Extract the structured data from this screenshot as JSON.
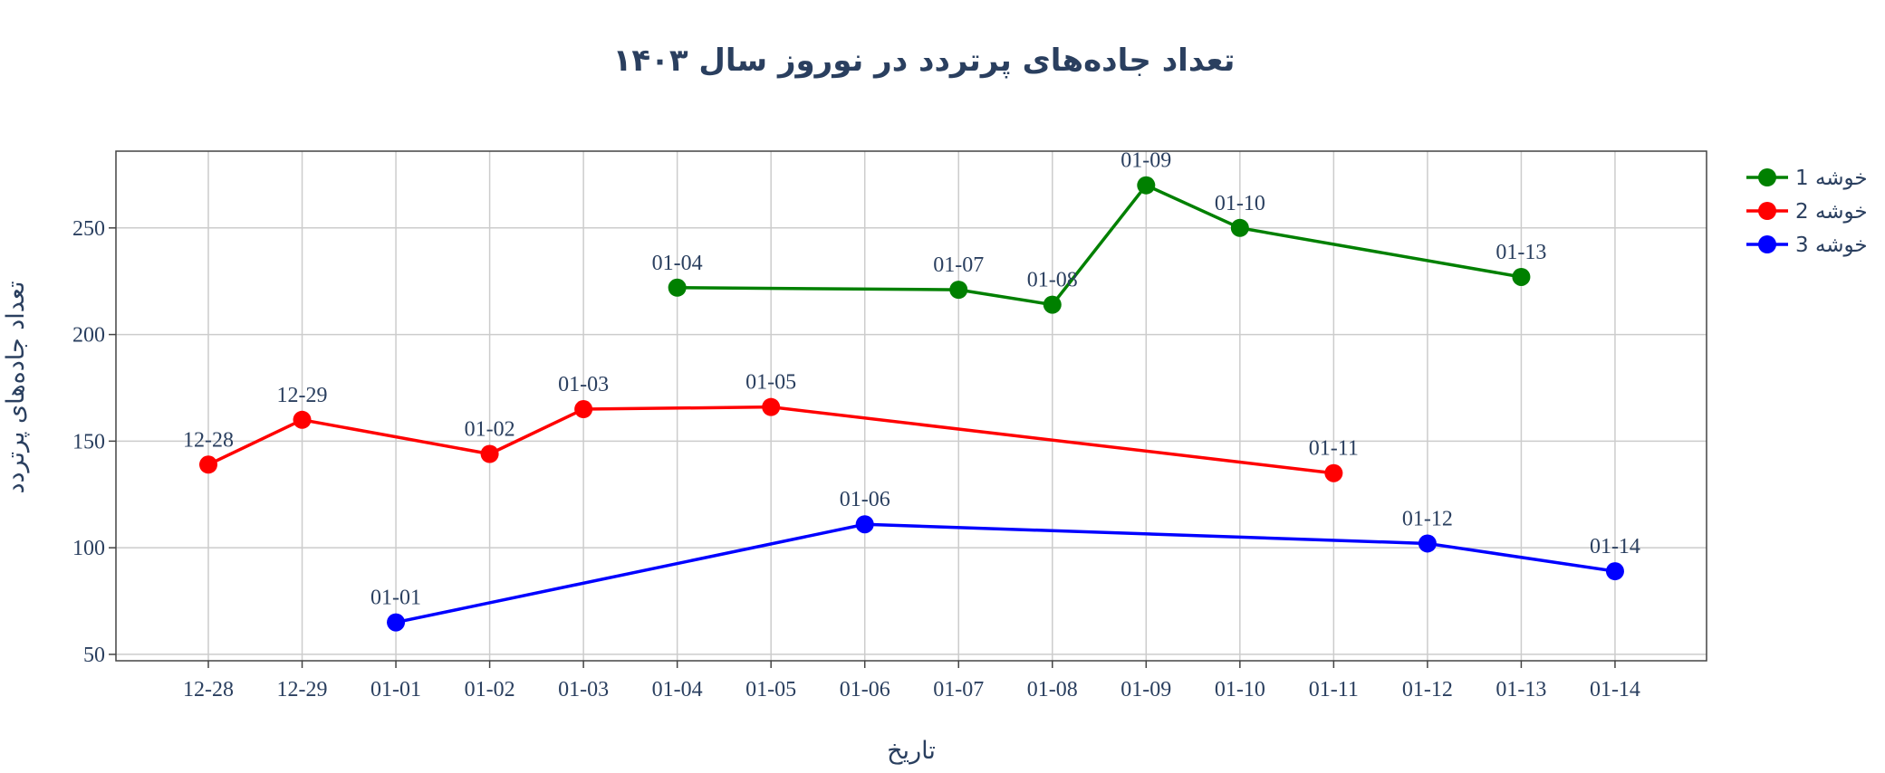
{
  "chart_data": {
    "type": "line",
    "title": "تعداد جاده‌های پرتردد در نوروز سال ۱۴۰۳",
    "xlabel": "تاریخ",
    "ylabel": "تعداد جاده‌های پرتردد",
    "categories": [
      "12-28",
      "12-29",
      "01-01",
      "01-02",
      "01-03",
      "01-04",
      "01-05",
      "01-06",
      "01-07",
      "01-08",
      "01-09",
      "01-10",
      "01-11",
      "01-12",
      "01-13",
      "01-14"
    ],
    "ylim": [
      47,
      286
    ],
    "yticks": [
      50,
      100,
      150,
      200,
      250
    ],
    "grid": true,
    "legend_position": "top-right",
    "series": [
      {
        "name": "خوشه 1",
        "color": "#008000",
        "points": [
          {
            "x": "01-04",
            "y": 222
          },
          {
            "x": "01-07",
            "y": 221
          },
          {
            "x": "01-08",
            "y": 214
          },
          {
            "x": "01-09",
            "y": 270
          },
          {
            "x": "01-10",
            "y": 250
          },
          {
            "x": "01-13",
            "y": 227
          }
        ]
      },
      {
        "name": "خوشه 2",
        "color": "#ff0000",
        "points": [
          {
            "x": "12-28",
            "y": 139
          },
          {
            "x": "12-29",
            "y": 160
          },
          {
            "x": "01-02",
            "y": 144
          },
          {
            "x": "01-03",
            "y": 165
          },
          {
            "x": "01-05",
            "y": 166
          },
          {
            "x": "01-11",
            "y": 135
          }
        ]
      },
      {
        "name": "خوشه 3",
        "color": "#0000ff",
        "points": [
          {
            "x": "01-01",
            "y": 65
          },
          {
            "x": "01-06",
            "y": 111
          },
          {
            "x": "01-12",
            "y": 102
          },
          {
            "x": "01-14",
            "y": 89
          }
        ]
      }
    ]
  }
}
